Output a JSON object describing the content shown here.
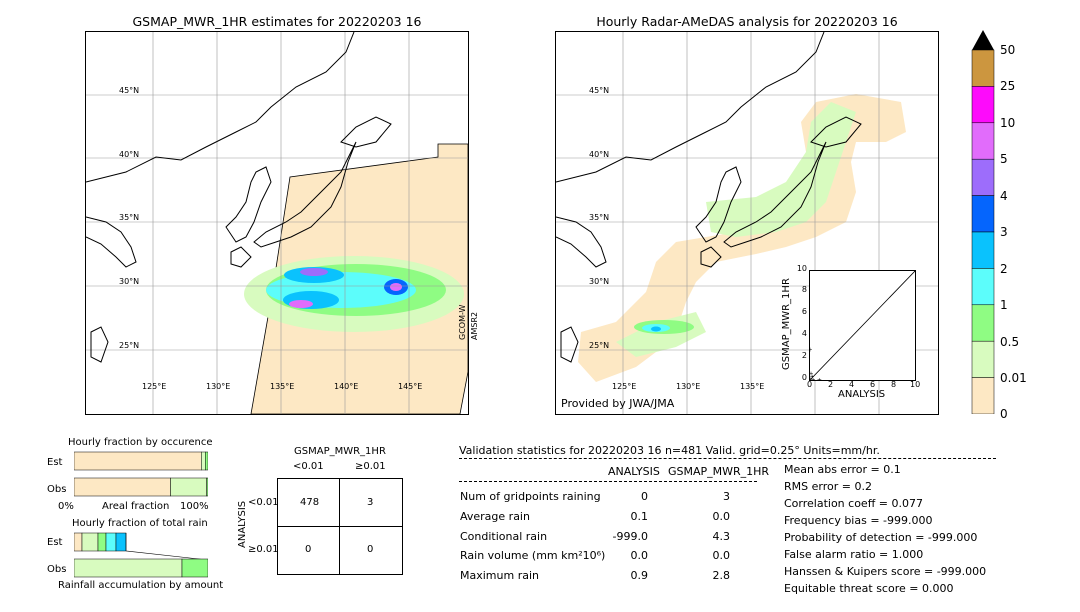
{
  "left_map": {
    "title": "GSMAP_MWR_1HR estimates for 20220203 16",
    "lat_labels": [
      "45°N",
      "40°N",
      "35°N",
      "30°N",
      "25°N"
    ],
    "lon_labels": [
      "125°E",
      "130°E",
      "135°E",
      "140°E",
      "145°E"
    ],
    "sensor_label_1": "GCOM-W",
    "sensor_label_2": "AMSR2"
  },
  "right_map": {
    "title": "Hourly Radar-AMeDAS analysis for 20220203 16",
    "lat_labels": [
      "45°N",
      "40°N",
      "35°N",
      "30°N",
      "25°N"
    ],
    "lon_labels": [
      "125°E",
      "130°E",
      "135°E"
    ],
    "credit": "Provided by JWA/JMA"
  },
  "colorbar": {
    "tick_labels": [
      "50",
      "25",
      "10",
      "5",
      "4",
      "3",
      "2",
      "1",
      "0.5",
      "0.01",
      "0"
    ],
    "colors": [
      "#ffffff",
      "#fde8c4",
      "#d8fbbf",
      "#8ffc83",
      "#5cfdfb",
      "#0ac2fd",
      "#0565fd",
      "#9d6dfb",
      "#e16cfb",
      "#fd0bfb",
      "#cc963f",
      "#000000"
    ]
  },
  "scatter": {
    "ylabel": "GSMAP_MWR_1HR",
    "xlabel": "ANALYSIS",
    "ticks": [
      "0",
      "2",
      "4",
      "6",
      "8",
      "10"
    ],
    "y_ticks": [
      "0",
      "2",
      "4",
      "6",
      "8",
      "10"
    ]
  },
  "fraction_occurrence": {
    "title": "Hourly fraction by occurence",
    "row1": "Est",
    "row2": "Obs",
    "axis_left": "0%",
    "axis_mid": "Areal fraction",
    "axis_right": "100%"
  },
  "fraction_total": {
    "title": "Hourly fraction of total rain",
    "row1": "Est",
    "row2": "Obs",
    "caption": "Rainfall accumulation by amount"
  },
  "contingency": {
    "title": "GSMAP_MWR_1HR",
    "col1": "<0.01",
    "col2": "≥0.01",
    "ylabel": "ANALYSIS",
    "row1": "<0.01",
    "row2": "≥0.01",
    "cells": [
      "478",
      "3",
      "0",
      "0"
    ]
  },
  "validation": {
    "header": "Validation statistics for 20220203 16  n=481 Valid. grid=0.25° Units=mm/hr.",
    "col_analysis": "ANALYSIS",
    "col_gsmap": "GSMAP_MWR_1HR",
    "rows": [
      {
        "label": "Num of gridpoints raining",
        "analysis": "0",
        "gsmap": "3"
      },
      {
        "label": "Average rain",
        "analysis": "0.1",
        "gsmap": "0.0"
      },
      {
        "label": "Conditional rain",
        "analysis": "-999.0",
        "gsmap": "4.3"
      },
      {
        "label": "Rain volume (mm km²10⁶)",
        "analysis": "0.0",
        "gsmap": "0.0"
      },
      {
        "label": "Maximum rain",
        "analysis": "0.9",
        "gsmap": "2.8"
      }
    ],
    "scores": [
      "Mean abs error =    0.1",
      "RMS error =    0.2",
      "Correlation coeff =  0.077",
      "Frequency bias = -999.000",
      "Probability of detection = -999.000",
      "False alarm ratio =  1.000",
      "Hanssen & Kuipers score = -999.000",
      "Equitable threat score =  0.000"
    ]
  },
  "chart_data": [
    {
      "type": "bar",
      "title": "Hourly fraction by occurence",
      "categories": [
        "Est",
        "Obs"
      ],
      "series": [
        {
          "values": [
            0.95,
            0.72
          ]
        },
        {
          "values": [
            0.03,
            0.27
          ]
        },
        {
          "values": [
            0.02,
            0.01
          ]
        }
      ],
      "xlim": [
        0,
        1
      ]
    },
    {
      "type": "scatter",
      "xlabel": "ANALYSIS",
      "ylabel": "GSMAP_MWR_1HR",
      "xlim": [
        0,
        10
      ],
      "ylim": [
        0,
        10
      ],
      "points": [
        [
          0.0,
          2.8
        ],
        [
          0.1,
          0.6
        ],
        [
          0.2,
          0.3
        ],
        [
          0.0,
          0.1
        ],
        [
          0.3,
          0.0
        ],
        [
          0.9,
          0.0
        ]
      ]
    }
  ]
}
